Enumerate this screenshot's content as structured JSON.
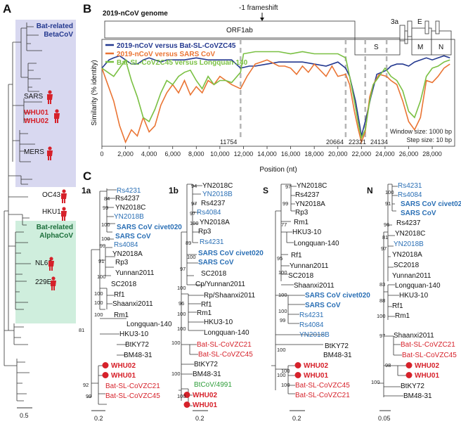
{
  "panels": {
    "a": "A",
    "b": "B",
    "c": "C"
  },
  "panel_a": {
    "betacov_box_label": [
      "Bat-related",
      "BetaCoV"
    ],
    "alphacov_box_label": [
      "Bat-related",
      "AlphaCoV"
    ],
    "tips": {
      "sars": "SARS",
      "whu01": "WHU01",
      "whu02": "WHU02",
      "mers": "MERS",
      "oc43": "OC43",
      "hku1": "HKU1",
      "nl63": "NL63",
      "e229": "229E"
    },
    "scale": "0.5",
    "colors": {
      "beta_box": "#d8d8f0",
      "alpha_box": "#cfeedd",
      "human": "#d6212a"
    }
  },
  "panel_b": {
    "genome_title": "2019-nCoV genome",
    "frameshift": "-1 frameshift",
    "genes": {
      "orf1ab": "ORF1ab",
      "s": "S",
      "e3a": "3a",
      "e": "E",
      "m": "M",
      "n": "N"
    },
    "positions": [
      "11754",
      "20664",
      "22321",
      "24134"
    ],
    "window": "Window size: 1000 bp",
    "step": "Step size: 10 bp",
    "ylabel": "Similarity (% identity)",
    "xlabel": "Position (nt)"
  },
  "chart_data": {
    "type": "line",
    "title": "2019-nCoV genome",
    "xlabel": "Position (nt)",
    "ylabel": "Similarity (% identity)",
    "xlim": [
      0,
      29903
    ],
    "ylim": [
      0.48,
      1.0
    ],
    "xticks": [
      0,
      2000,
      4000,
      6000,
      8000,
      10000,
      12000,
      14000,
      16000,
      18000,
      20000,
      22000,
      24000,
      26000,
      28000
    ],
    "xtick_labels": [
      "0",
      "2,000",
      "4,000",
      "6,000",
      "8,000",
      "10,000",
      "12,000",
      "14,000",
      "16,000",
      "18,000",
      "20,000",
      "22,000",
      "24,000",
      "26,000",
      "28,000"
    ],
    "markers": [
      11754,
      20664,
      22321,
      24134
    ],
    "series": [
      {
        "name": "2019-nCoV versus Bat-SL-CoVZC45",
        "color": "#23388f",
        "x": [
          0,
          600,
          1000,
          1500,
          2000,
          2500,
          3000,
          3500,
          4000,
          4500,
          5000,
          5500,
          6000,
          7000,
          8000,
          9000,
          10000,
          11000,
          11754,
          12500,
          13000,
          14000,
          15000,
          16000,
          17000,
          18000,
          19000,
          20000,
          20664,
          21000,
          21500,
          21800,
          22000,
          22321,
          22800,
          23300,
          24134,
          24500,
          25000,
          25500,
          26000,
          26500,
          27000,
          27500,
          28000,
          28500,
          29000,
          29500
        ],
        "y": [
          0.86,
          0.9,
          0.91,
          0.92,
          0.9,
          0.88,
          0.88,
          0.9,
          0.91,
          0.9,
          0.89,
          0.9,
          0.9,
          0.9,
          0.91,
          0.9,
          0.9,
          0.9,
          0.86,
          0.87,
          0.87,
          0.88,
          0.89,
          0.89,
          0.89,
          0.88,
          0.87,
          0.89,
          0.86,
          0.82,
          0.7,
          0.6,
          0.53,
          0.6,
          0.72,
          0.83,
          0.85,
          0.87,
          0.88,
          0.88,
          0.87,
          0.89,
          0.9,
          0.91,
          0.9,
          0.91,
          0.92,
          0.91
        ]
      },
      {
        "name": "2019-nCoV versus SARS CoV",
        "color": "#ea7433",
        "x": [
          0,
          500,
          1000,
          1500,
          2000,
          2500,
          3000,
          3500,
          4000,
          4500,
          5000,
          5500,
          6000,
          6500,
          7000,
          7500,
          8000,
          8500,
          9000,
          9500,
          10000,
          10500,
          11000,
          11754,
          12300,
          13000,
          13500,
          14000,
          15000,
          15500,
          16000,
          16500,
          17000,
          17500,
          18000,
          18500,
          19000,
          19500,
          20000,
          20664,
          21000,
          21400,
          21700,
          22000,
          22321,
          22700,
          23000,
          23500,
          24134,
          24500,
          25000,
          25500,
          26000,
          26500,
          27000,
          27500,
          28000,
          28500,
          29000,
          29500
        ],
        "y": [
          0.86,
          0.78,
          0.7,
          0.58,
          0.5,
          0.56,
          0.53,
          0.62,
          0.55,
          0.58,
          0.68,
          0.74,
          0.78,
          0.74,
          0.8,
          0.73,
          0.77,
          0.74,
          0.8,
          0.78,
          0.82,
          0.8,
          0.78,
          0.76,
          0.82,
          0.88,
          0.89,
          0.9,
          0.87,
          0.87,
          0.86,
          0.83,
          0.87,
          0.84,
          0.88,
          0.85,
          0.82,
          0.87,
          0.82,
          0.83,
          0.78,
          0.65,
          0.57,
          0.5,
          0.55,
          0.72,
          0.78,
          0.83,
          0.82,
          0.8,
          0.78,
          0.7,
          0.6,
          0.56,
          0.62,
          0.8,
          0.79,
          0.82,
          0.86,
          0.88
        ]
      },
      {
        "name": "Bat-SL-CoVZC45 versus Longquan-140",
        "color": "#7ac043",
        "x": [
          0,
          500,
          1000,
          1500,
          2000,
          2500,
          3000,
          3500,
          4000,
          4500,
          5000,
          5500,
          6000,
          6500,
          7000,
          7500,
          8000,
          8500,
          9000,
          9500,
          10000,
          10500,
          11000,
          11754,
          12000,
          13000,
          14000,
          15000,
          16000,
          17000,
          18000,
          19000,
          20000,
          20664,
          21000,
          21400,
          21700,
          22000,
          22321,
          22700,
          23000,
          23500,
          24000,
          24134,
          24500,
          25000,
          25500,
          26000,
          26500,
          27000,
          27500,
          28000,
          28500,
          29000,
          29500
        ],
        "y": [
          0.86,
          0.84,
          0.82,
          0.86,
          0.9,
          0.8,
          0.72,
          0.62,
          0.6,
          0.66,
          0.74,
          0.8,
          0.78,
          0.82,
          0.84,
          0.85,
          0.8,
          0.76,
          0.82,
          0.78,
          0.8,
          0.8,
          0.79,
          0.84,
          0.93,
          0.94,
          0.94,
          0.94,
          0.93,
          0.94,
          0.93,
          0.93,
          0.93,
          0.91,
          0.82,
          0.7,
          0.6,
          0.52,
          0.56,
          0.7,
          0.78,
          0.82,
          0.86,
          0.85,
          0.82,
          0.8,
          0.75,
          0.65,
          0.62,
          0.7,
          0.82,
          0.86,
          0.87,
          0.89,
          0.9
        ]
      }
    ]
  },
  "panel_c": {
    "trees": {
      "t1a": "1a",
      "t1b": "1b",
      "ts": "S",
      "tn": "N"
    },
    "tree1a": {
      "labels": [
        "Rs4231",
        "Rs4237",
        "YN2018C",
        "YN2018B",
        "SARS CoV civet020",
        "SARS CoV",
        "Rs4084",
        "YN2018A",
        "Rp3",
        "Yunnan2011",
        "SC2018",
        "Rf1",
        "Shaanxi2011",
        "Rm1",
        "Longquan-140",
        "HKU3-10",
        "BtKY72",
        "BM48-31",
        "WHU02",
        "WHU01",
        "Bat-SL-CoVZC21",
        "Bat-SL-CoVZC45"
      ],
      "boots": [
        "84",
        "99",
        "100",
        "100",
        "99",
        "91",
        "100",
        "100",
        "100",
        "100",
        "81",
        "92",
        "99"
      ],
      "scale": "0.2"
    },
    "tree1b": {
      "labels": [
        "YN2018C",
        "YN2018B",
        "Rs4237",
        "Rs4084",
        "YN2018A",
        "Rp3",
        "Rs4231",
        "SARS CoV civet020",
        "SARS CoV",
        "SC2018",
        "Cp/Yunnan2011",
        "Rp/Shaanxi2011",
        "Rf1",
        "Rm1",
        "HKU3-10",
        "Longquan-140",
        "Bat-SL-CoVZC21",
        "Bat-SL-CoVZC45",
        "BtKY72",
        "BM48-31",
        "BtCoV/4991",
        "WHU02",
        "WHU01"
      ],
      "boots": [
        "94",
        "97",
        "97",
        "100",
        "89",
        "100",
        "97",
        "100",
        "96",
        "100",
        "100",
        "100",
        "100",
        "100"
      ],
      "scale": "0.2"
    },
    "treeS": {
      "labels": [
        "YN2018C",
        "Rs4237",
        "YN2018A",
        "Rp3",
        "Rm1",
        "HKU3-10",
        "Longquan-140",
        "Rf1",
        "Yunnan2011",
        "SC2018",
        "Shaanxi2011",
        "SARS CoV civet020",
        "SARS CoV",
        "Rs4231",
        "Rs4084",
        "YN2018B",
        "BtKY72",
        "BM48-31",
        "WHU02",
        "WHU01",
        "Bat-SL-CoVZC45",
        "Bat-SL-CoVZC21"
      ],
      "boots": [
        "97",
        "99",
        "77",
        "95",
        "100",
        "100",
        "100",
        "99",
        "100",
        "100",
        "100",
        "100"
      ],
      "scale": "0.2"
    },
    "treeN": {
      "labels": [
        "Rs4231",
        "Rs4084",
        "SARS CoV civet020",
        "SARS CoV",
        "Rs4237",
        "YN2018C",
        "YN2018B",
        "YN2018A",
        "SC2018",
        "Yunnan2011",
        "Longquan-140",
        "HKU3-10",
        "Rf1",
        "Rm1",
        "Shaanxi2011",
        "Bat-SL-CoVZC21",
        "Bat-SL-CoVZC45",
        "WHU02",
        "WHU01",
        "BtKY72",
        "BM48-31"
      ],
      "boots": [
        "100",
        "91",
        "96",
        "81",
        "97",
        "83",
        "88",
        "100",
        "97",
        "98",
        "100"
      ],
      "scale": "0.05"
    }
  }
}
